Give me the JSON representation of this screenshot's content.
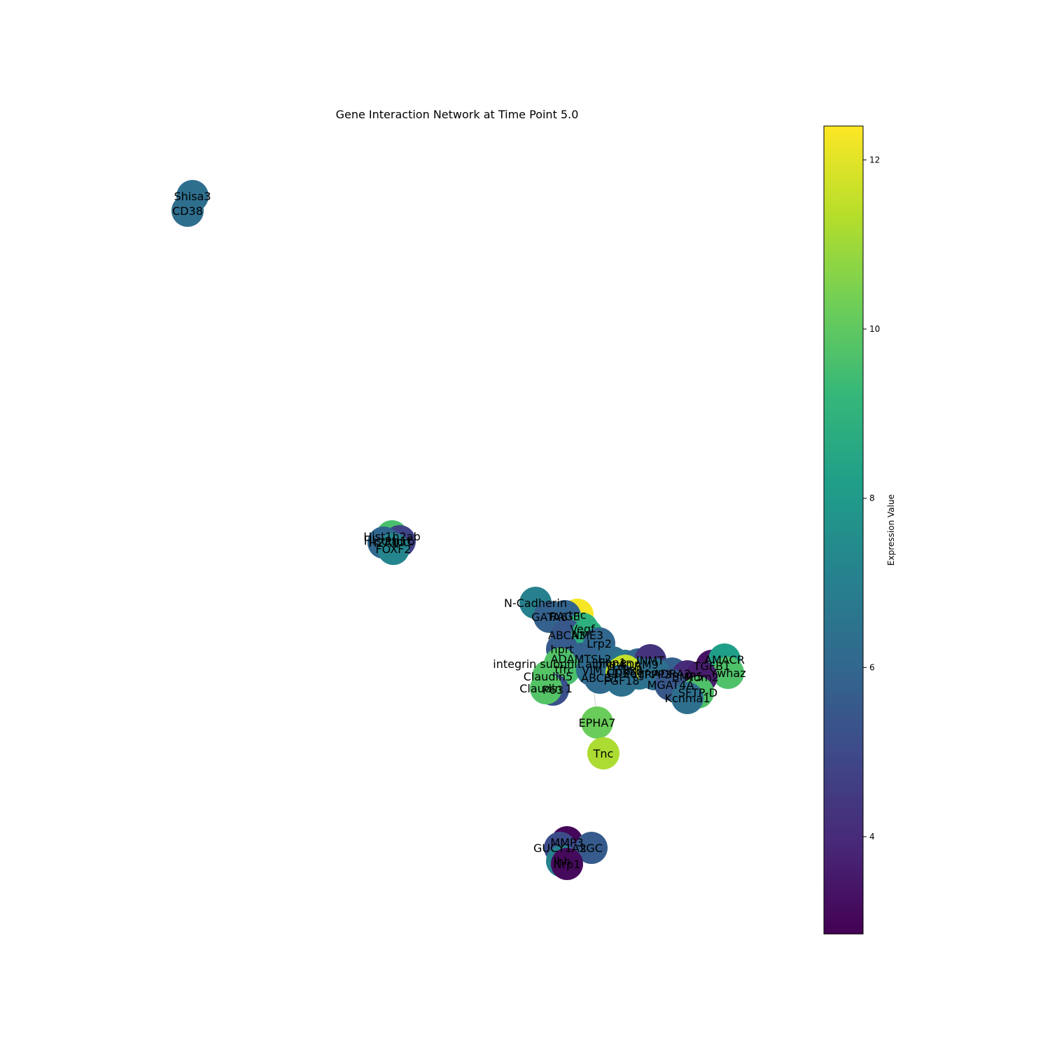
{
  "title": "Gene Interaction Network at Time Point 5.0",
  "colorbar": {
    "label": "Expression Value",
    "min": 2.85,
    "max": 12.4,
    "ticks": [
      "4",
      "6",
      "8",
      "10",
      "12"
    ],
    "colormap": "viridis"
  },
  "chart_data": {
    "type": "network",
    "nodes": [
      {
        "label": "Shisa3",
        "value": 6.3
      },
      {
        "label": "CD38",
        "value": 6.3
      },
      {
        "label": "Hist1h2ab",
        "value": 9.6
      },
      {
        "label": "Hist1h1c",
        "value": 9.6
      },
      {
        "label": "Ptprb",
        "value": 4.8
      },
      {
        "label": "H2A1",
        "value": 6.0
      },
      {
        "label": "FOXF2",
        "value": 7.2
      },
      {
        "label": "N-Cadherin",
        "value": 7.0
      },
      {
        "label": "GATA6",
        "value": 5.8
      },
      {
        "label": "tnc",
        "value": 12.3
      },
      {
        "label": "RAGE",
        "value": 5.9
      },
      {
        "label": "Vegf",
        "value": 9.0
      },
      {
        "label": "ABCA3",
        "value": 5.5
      },
      {
        "label": "NME3",
        "value": 8.9
      },
      {
        "label": "Lrp2",
        "value": 6.0
      },
      {
        "label": "hprt",
        "value": 5.6
      },
      {
        "label": "ADAMTSL2",
        "value": 5.8
      },
      {
        "label": "integrin subunit alpha 8",
        "value": 9.8
      },
      {
        "label": "tfrc",
        "value": 9.6
      },
      {
        "label": "VIM",
        "value": 6.2
      },
      {
        "label": "Claudin5",
        "value": 9.8
      },
      {
        "label": "ABCB1",
        "value": 6.1
      },
      {
        "label": "P63",
        "value": 5.2
      },
      {
        "label": "Claudin 1",
        "value": 9.8
      },
      {
        "label": "Fbn1",
        "value": 6.2
      },
      {
        "label": "IGF1R",
        "value": 6.6
      },
      {
        "label": "ADAM9",
        "value": 6.0
      },
      {
        "label": "INMT",
        "value": 4.3
      },
      {
        "label": "CD36",
        "value": 11.5
      },
      {
        "label": "Pdgfc",
        "value": 6.5
      },
      {
        "label": "Upk3b",
        "value": 11.6
      },
      {
        "label": "FGF18",
        "value": 6.3
      },
      {
        "label": "ADRA2",
        "value": 5.8
      },
      {
        "label": "TPPP3",
        "value": 6.3
      },
      {
        "label": "BMP5",
        "value": 4.0
      },
      {
        "label": "MGAT4A",
        "value": 5.5
      },
      {
        "label": "TGFB1",
        "value": 3.3
      },
      {
        "label": "AMACR",
        "value": 8.2
      },
      {
        "label": "Ywhaz",
        "value": 9.7
      },
      {
        "label": "Mdm2",
        "value": 3.6
      },
      {
        "label": "SFTP-D",
        "value": 9.7
      },
      {
        "label": "Kcnma1",
        "value": 6.3
      },
      {
        "label": "EPHA7",
        "value": 10.2
      },
      {
        "label": "Tnc",
        "value": 11.2
      },
      {
        "label": "MMP3",
        "value": 3.0
      },
      {
        "label": "GUCY1A2",
        "value": 5.1
      },
      {
        "label": "sGC",
        "value": 5.6
      },
      {
        "label": "Ihh",
        "value": 7.1
      },
      {
        "label": "Nrp1",
        "value": 3.1
      }
    ],
    "edges": [
      [
        "tnc",
        "RAGE"
      ],
      [
        "GATA6",
        "tnc"
      ],
      [
        "N-Cadherin",
        "GATA6"
      ],
      [
        "RAGE",
        "Vegf"
      ],
      [
        "Vegf",
        "NME3"
      ],
      [
        "ABCA3",
        "hprt"
      ],
      [
        "NME3",
        "Lrp2"
      ],
      [
        "hprt",
        "ADAMTSL2"
      ],
      [
        "ADAMTSL2",
        "VIM"
      ],
      [
        "VIM",
        "ABCB1"
      ],
      [
        "VIM",
        "EPHA7"
      ],
      [
        "EPHA7",
        "Tnc"
      ],
      [
        "integrin subunit alpha 8",
        "tfrc"
      ],
      [
        "tfrc",
        "Claudin5"
      ],
      [
        "Claudin5",
        "P63"
      ],
      [
        "P63",
        "Claudin 1"
      ],
      [
        "Lrp2",
        "Fbn1"
      ],
      [
        "Fbn1",
        "IGF1R"
      ],
      [
        "IGF1R",
        "CD36"
      ],
      [
        "ADAM9",
        "INMT"
      ],
      [
        "CD36",
        "Upk3b"
      ],
      [
        "Upk3b",
        "FGF18"
      ],
      [
        "INMT",
        "TPPP3"
      ],
      [
        "TPPP3",
        "BMP5"
      ],
      [
        "BMP5",
        "MGAT4A"
      ],
      [
        "MGAT4A",
        "Kcnma1"
      ],
      [
        "Kcnma1",
        "SFTP-D"
      ],
      [
        "SFTP-D",
        "Mdm2"
      ],
      [
        "Mdm2",
        "TGFB1"
      ],
      [
        "TGFB1",
        "AMACR"
      ],
      [
        "AMACR",
        "Ywhaz"
      ],
      [
        "Shisa3",
        "CD38"
      ],
      [
        "Hist1h2ab",
        "Hist1h1c"
      ],
      [
        "Hist1h1c",
        "Ptprb"
      ],
      [
        "Ptprb",
        "FOXF2"
      ],
      [
        "MMP3",
        "GUCY1A2"
      ],
      [
        "GUCY1A2",
        "sGC"
      ],
      [
        "sGC",
        "Ihh"
      ],
      [
        "Ihh",
        "Nrp1"
      ]
    ]
  }
}
